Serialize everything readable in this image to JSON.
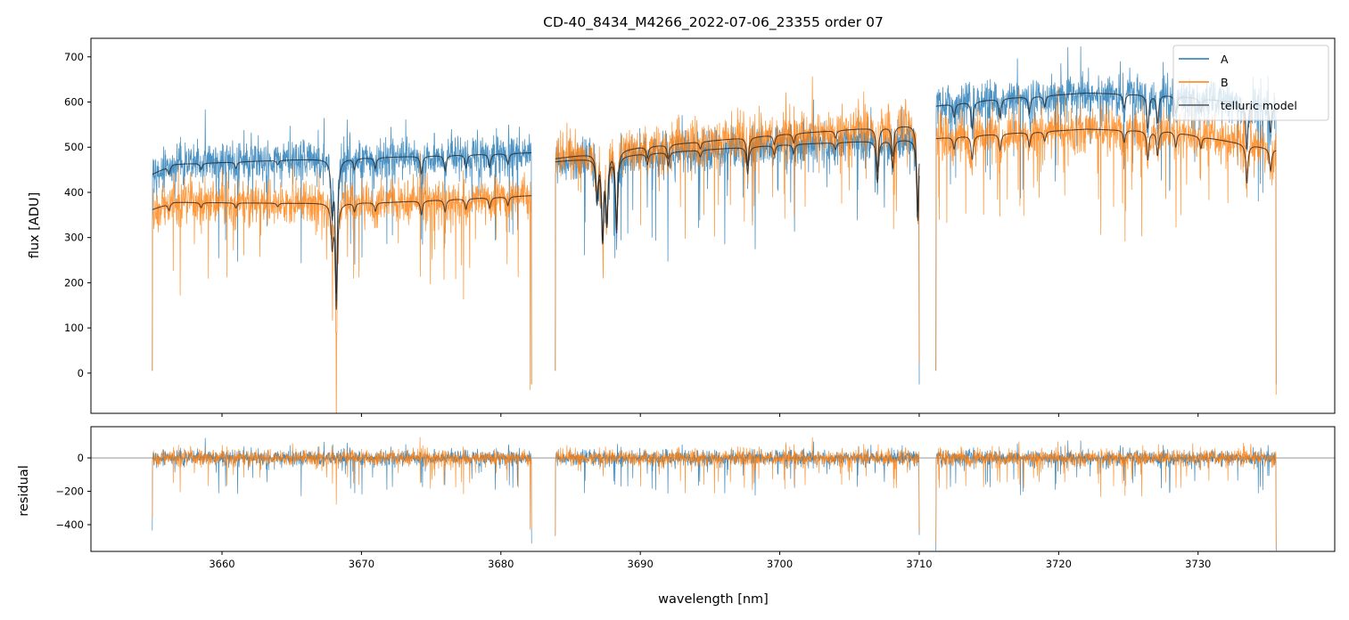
{
  "chart_data": [
    {
      "type": "line",
      "panel": "spectrum",
      "title": "CD-40_8434_M4266_2022-07-06_23355  order 07",
      "xlabel": "",
      "ylabel": "flux [ADU]",
      "xlim": [
        3650.6,
        3739.8
      ],
      "ylim": [
        -89,
        741
      ],
      "xticks": [
        3660,
        3670,
        3680,
        3690,
        3700,
        3710,
        3720,
        3730
      ],
      "yticks": [
        0,
        100,
        200,
        300,
        400,
        500,
        600,
        700
      ],
      "legend": {
        "position": "top-right",
        "entries": [
          "A",
          "B",
          "telluric model"
        ]
      },
      "colors": {
        "A": "#1f77b4",
        "B": "#ff7f0e",
        "model": "#222222"
      },
      "segments": [
        {
          "range": [
            3655.0,
            3682.2
          ],
          "A_continuum": [
            [
              3655.0,
              440
            ],
            [
              3656.5,
              462
            ],
            [
              3665,
              472
            ],
            [
              3672,
              478
            ],
            [
              3682.2,
              488
            ]
          ],
          "B_continuum": [
            [
              3655.0,
              362
            ],
            [
              3656.5,
              378
            ],
            [
              3665,
              376
            ],
            [
              3672,
              378
            ],
            [
              3682.2,
              393
            ]
          ]
        },
        {
          "range": [
            3683.9,
            3710.0
          ],
          "A_continuum": [
            [
              3683.9,
              468
            ],
            [
              3690,
              485
            ],
            [
              3700,
              505
            ],
            [
              3710.0,
              518
            ]
          ],
          "B_continuum": [
            [
              3683.9,
              475
            ],
            [
              3690,
              500
            ],
            [
              3700,
              528
            ],
            [
              3710.0,
              550
            ]
          ]
        },
        {
          "range": [
            3711.2,
            3735.6
          ],
          "A_continuum": [
            [
              3711.2,
              592
            ],
            [
              3716,
              608
            ],
            [
              3722,
              620
            ],
            [
              3728,
              615
            ],
            [
              3735.6,
              590
            ]
          ],
          "B_continuum": [
            [
              3711.2,
              520
            ],
            [
              3716,
              530
            ],
            [
              3722,
              540
            ],
            [
              3728,
              535
            ],
            [
              3735.6,
              495
            ]
          ]
        }
      ],
      "telluric_lines": [
        [
          3656.2,
          0.04
        ],
        [
          3658.5,
          0.03
        ],
        [
          3661.0,
          0.03
        ],
        [
          3664.0,
          0.02
        ],
        [
          3667.9,
          0.25
        ],
        [
          3668.2,
          0.62
        ],
        [
          3669.5,
          0.05
        ],
        [
          3671.0,
          0.05
        ],
        [
          3674.3,
          0.08
        ],
        [
          3676.0,
          0.07
        ],
        [
          3677.5,
          0.06
        ],
        [
          3679.2,
          0.06
        ],
        [
          3680.5,
          0.05
        ],
        [
          3686.9,
          0.2
        ],
        [
          3687.3,
          0.38
        ],
        [
          3687.6,
          0.3
        ],
        [
          3688.3,
          0.35
        ],
        [
          3690.5,
          0.05
        ],
        [
          3692.0,
          0.06
        ],
        [
          3694.3,
          0.03
        ],
        [
          3697.7,
          0.12
        ],
        [
          3699.6,
          0.04
        ],
        [
          3701.0,
          0.04
        ],
        [
          3704.0,
          0.03
        ],
        [
          3707.0,
          0.18
        ],
        [
          3708.1,
          0.12
        ],
        [
          3709.9,
          0.35
        ],
        [
          3712.5,
          0.05
        ],
        [
          3713.8,
          0.1
        ],
        [
          3715.8,
          0.07
        ],
        [
          3717.9,
          0.06
        ],
        [
          3719.0,
          0.04
        ],
        [
          3724.7,
          0.05
        ],
        [
          3726.4,
          0.12
        ],
        [
          3727.1,
          0.1
        ],
        [
          3728.4,
          0.06
        ],
        [
          3730.2,
          0.05
        ],
        [
          3733.5,
          0.17
        ],
        [
          3735.2,
          0.1
        ]
      ],
      "noise_ADU": {
        "A": 22,
        "B": 24
      },
      "edge_values": {
        "start": 5,
        "end": -25
      }
    },
    {
      "type": "line",
      "panel": "residual",
      "xlabel": "wavelength [nm]",
      "ylabel": "residual",
      "xlim": [
        3650.6,
        3739.8
      ],
      "ylim": [
        -560,
        187
      ],
      "xticks": [
        3660,
        3670,
        3680,
        3690,
        3700,
        3710,
        3720,
        3730
      ],
      "yticks": [
        0,
        -200,
        -400
      ],
      "reference_line": 0,
      "features": [
        {
          "series": "B",
          "x": 3668.2,
          "y": -280
        },
        {
          "series": "B",
          "x": 3674.2,
          "y": 125
        },
        {
          "series": "B",
          "x": 3682.1,
          "y": -430
        },
        {
          "series": "B",
          "x": 3710.0,
          "y": -440
        },
        {
          "series": "B",
          "x": 3735.6,
          "y": -540
        },
        {
          "series": "A",
          "x": 3658.8,
          "y": 120
        }
      ]
    }
  ]
}
